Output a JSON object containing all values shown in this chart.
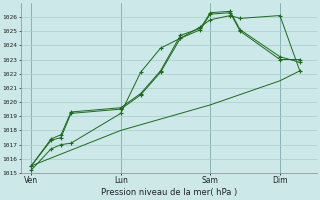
{
  "background_color": "#cce8e8",
  "grid_color": "#aacccc",
  "line_color": "#1a6b1a",
  "title": "Pression niveau de la mer( hPa )",
  "ylim": [
    1015,
    1027
  ],
  "yticks": [
    1015,
    1016,
    1017,
    1018,
    1019,
    1020,
    1021,
    1022,
    1023,
    1024,
    1025,
    1026
  ],
  "xtick_labels": [
    "Ven",
    "Lun",
    "Sam",
    "Dim"
  ],
  "xtick_positions": [
    0,
    36,
    72,
    100
  ],
  "vline_positions": [
    0,
    36,
    72,
    100
  ],
  "series1_x": [
    0,
    8,
    12,
    16,
    36,
    44,
    52,
    60,
    68,
    72,
    80,
    84,
    100,
    108
  ],
  "series1_y": [
    1015.2,
    1016.7,
    1017.0,
    1017.1,
    1019.2,
    1022.1,
    1023.8,
    1024.5,
    1025.3,
    1025.8,
    1026.1,
    1025.9,
    1026.1,
    1022.2
  ],
  "series2_x": [
    0,
    8,
    12,
    16,
    36,
    44,
    52,
    60,
    68,
    72,
    80,
    84,
    100,
    108
  ],
  "series2_y": [
    1015.5,
    1017.3,
    1017.5,
    1019.2,
    1019.5,
    1020.5,
    1022.1,
    1024.5,
    1025.1,
    1026.2,
    1026.3,
    1025.0,
    1023.0,
    1023.0
  ],
  "series3_x": [
    0,
    8,
    12,
    16,
    36,
    44,
    52,
    60,
    68,
    72,
    80,
    84,
    100,
    108
  ],
  "series3_y": [
    1015.5,
    1017.4,
    1017.7,
    1019.3,
    1019.6,
    1020.6,
    1022.2,
    1024.7,
    1025.2,
    1026.3,
    1026.4,
    1025.1,
    1023.2,
    1022.8
  ],
  "series4_x": [
    0,
    36,
    72,
    100,
    108
  ],
  "series4_y": [
    1015.5,
    1018.0,
    1019.8,
    1021.5,
    1022.2
  ],
  "figsize": [
    3.2,
    2.0
  ],
  "dpi": 100
}
